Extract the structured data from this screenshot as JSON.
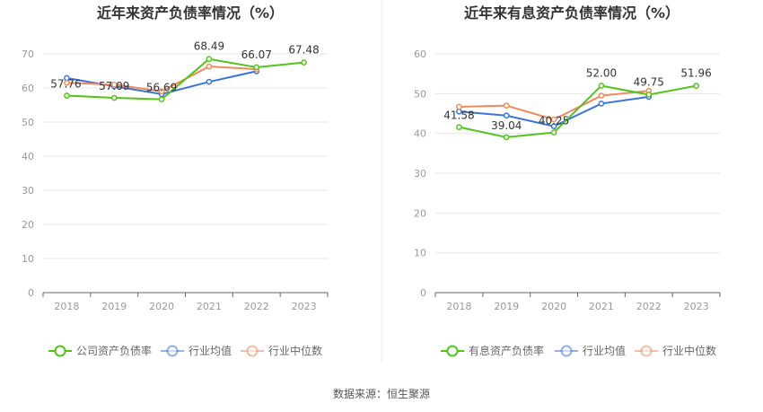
{
  "chart_data": [
    {
      "type": "line",
      "title": "近年来资产负债率情况（%）",
      "xlabel": "",
      "ylabel": "",
      "x": [
        "2018",
        "2019",
        "2020",
        "2021",
        "2022",
        "2023"
      ],
      "ylim": [
        0,
        70
      ],
      "yticks": [
        0,
        10,
        20,
        30,
        40,
        50,
        60,
        70
      ],
      "grid": true,
      "legend_position": "bottom",
      "series": [
        {
          "name": "公司资产负债率",
          "color": "#52c41a",
          "values": [
            57.76,
            57.09,
            56.69,
            68.49,
            66.07,
            67.48
          ],
          "labels": [
            "57.76",
            "57.09",
            "56.69",
            "68.49",
            "66.07",
            "67.48"
          ]
        },
        {
          "name": "行业均值",
          "color": "#3b73d9",
          "values": [
            62.9,
            60.5,
            58.2,
            61.8,
            64.9,
            null
          ]
        },
        {
          "name": "行业中位数",
          "color": "#f08a5d",
          "values": [
            61.5,
            61.0,
            59.0,
            66.3,
            65.5,
            null
          ]
        }
      ]
    },
    {
      "type": "line",
      "title": "近年来有息资产负债率情况（%）",
      "xlabel": "",
      "ylabel": "",
      "x": [
        "2018",
        "2019",
        "2020",
        "2021",
        "2022",
        "2023"
      ],
      "ylim": [
        0,
        60
      ],
      "yticks": [
        0,
        10,
        20,
        30,
        40,
        50,
        60
      ],
      "grid": true,
      "legend_position": "bottom",
      "series": [
        {
          "name": "有息资产负债率",
          "color": "#52c41a",
          "values": [
            41.58,
            39.04,
            40.25,
            52.0,
            49.75,
            51.96
          ],
          "labels": [
            "41.58",
            "39.04",
            "40.25",
            "52.00",
            "49.75",
            "51.96"
          ]
        },
        {
          "name": "行业均值",
          "color": "#3b73d9",
          "values": [
            45.5,
            44.5,
            41.8,
            47.5,
            49.2,
            null
          ]
        },
        {
          "name": "行业中位数",
          "color": "#f08a5d",
          "values": [
            46.7,
            47.0,
            43.5,
            49.5,
            50.7,
            null
          ]
        }
      ]
    }
  ],
  "footer": {
    "source": "数据来源：恒生聚源"
  }
}
